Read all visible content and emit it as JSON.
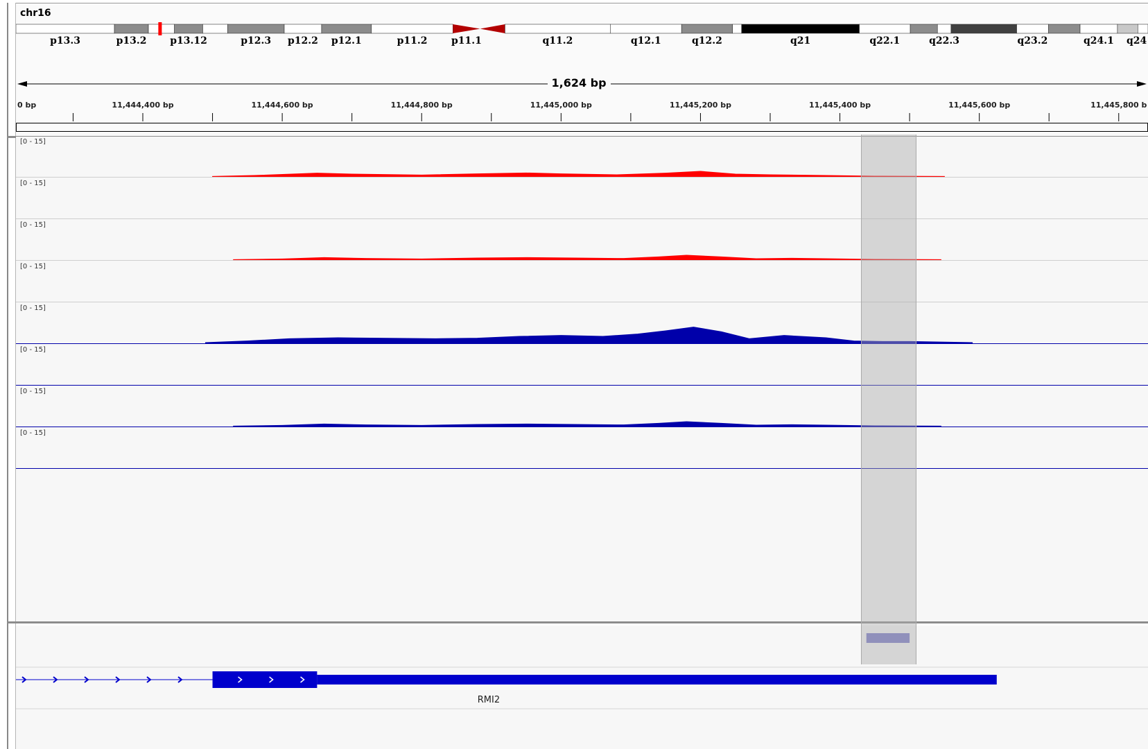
{
  "chromosome": {
    "name": "chr16",
    "bands": [
      {
        "name": "p13.3",
        "stain": "gneg",
        "start": 0,
        "end": 0.087
      },
      {
        "name": "p13.2",
        "stain": "gpos50",
        "start": 0.087,
        "end": 0.117
      },
      {
        "name": "p13.13",
        "stain": "gneg",
        "start": 0.117,
        "end": 0.14
      },
      {
        "name": "p13.12",
        "stain": "gpos50",
        "start": 0.14,
        "end": 0.165
      },
      {
        "name": "p13.11",
        "stain": "gneg",
        "start": 0.165,
        "end": 0.187
      },
      {
        "name": "p12.3",
        "stain": "gpos50",
        "start": 0.187,
        "end": 0.237
      },
      {
        "name": "p12.2",
        "stain": "gneg",
        "start": 0.237,
        "end": 0.27
      },
      {
        "name": "p12.1",
        "stain": "gpos50",
        "start": 0.27,
        "end": 0.314
      },
      {
        "name": "p11.2",
        "stain": "gneg",
        "start": 0.314,
        "end": 0.386
      },
      {
        "name": "p11.1",
        "stain": "acen",
        "start": 0.386,
        "end": 0.41
      },
      {
        "name": "q11.1",
        "stain": "acen",
        "start": 0.41,
        "end": 0.432
      },
      {
        "name": "q11.2",
        "stain": "gneg",
        "start": 0.432,
        "end": 0.525
      },
      {
        "name": "q12.1",
        "stain": "gneg",
        "start": 0.525,
        "end": 0.588
      },
      {
        "name": "q12.2",
        "stain": "gpos50",
        "start": 0.588,
        "end": 0.633
      },
      {
        "name": "q13",
        "stain": "gneg",
        "start": 0.633,
        "end": 0.641
      },
      {
        "name": "q21",
        "stain": "gpos100",
        "start": 0.641,
        "end": 0.745
      },
      {
        "name": "q22.1",
        "stain": "gneg",
        "start": 0.745,
        "end": 0.79
      },
      {
        "name": "q22.2",
        "stain": "gpos50",
        "start": 0.79,
        "end": 0.814
      },
      {
        "name": "q22.3",
        "stain": "gneg",
        "start": 0.814,
        "end": 0.826
      },
      {
        "name": "q23.1",
        "stain": "gpos75",
        "start": 0.826,
        "end": 0.884
      },
      {
        "name": "q23.2",
        "stain": "gneg",
        "start": 0.884,
        "end": 0.912
      },
      {
        "name": "q23.3",
        "stain": "gpos50",
        "start": 0.912,
        "end": 0.94
      },
      {
        "name": "q24.1",
        "stain": "gneg",
        "start": 0.94,
        "end": 0.973
      },
      {
        "name": "q24.2",
        "stain": "gpos25",
        "start": 0.973,
        "end": 0.991
      },
      {
        "name": "q24.3",
        "stain": "gneg",
        "start": 0.991,
        "end": 1.0
      }
    ],
    "band_labels": [
      "p13.3",
      "p13.2",
      "p13.12",
      "p12.3",
      "p12.2",
      "p12.1",
      "p11.2",
      "p11.1",
      "q11.2",
      "q12.1",
      "q12.2",
      "q21",
      "q22.1",
      "q22.3",
      "q23.2",
      "q24.1",
      "q24"
    ],
    "current_view_fraction": 0.127
  },
  "ruler": {
    "span_label": "1,624 bp",
    "start_bp": 11444218,
    "end_bp": 11445842,
    "tick_labels": [
      "0 bp",
      "11,444,400 bp",
      "11,444,600 bp",
      "11,444,800 bp",
      "11,445,000 bp",
      "11,445,200 bp",
      "11,445,400 bp",
      "11,445,600 bp",
      "11,445,800 b"
    ],
    "tick_values": [
      11444218,
      11444400,
      11444600,
      11444800,
      11445000,
      11445200,
      11445400,
      11445600,
      11445800
    ]
  },
  "tracks": [
    {
      "range_label": "[0 - 15]",
      "color": "#ff0000",
      "profile": "a"
    },
    {
      "range_label": "[0 - 15]",
      "color": "#ff0000",
      "profile": "none"
    },
    {
      "range_label": "[0 - 15]",
      "color": "#ff0000",
      "profile": "b"
    },
    {
      "range_label": "[0 - 15]",
      "color": "#ff0000",
      "profile": "none"
    },
    {
      "range_label": "[0 - 15]",
      "color": "#0000aa",
      "profile": "c"
    },
    {
      "range_label": "[0 - 15]",
      "color": "#0000aa",
      "profile": "none"
    },
    {
      "range_label": "[0 - 15]",
      "color": "#0000aa",
      "profile": "b"
    },
    {
      "range_label": "[0 - 15]",
      "color": "#0000aa",
      "profile": "none"
    }
  ],
  "coverage_profiles": {
    "a": {
      "start_bp": 11444500,
      "end_bp": 11445550,
      "points_bp": [
        11444500,
        11444560,
        11444650,
        11444700,
        11444800,
        11444880,
        11444950,
        11445000,
        11445080,
        11445150,
        11445200,
        11445250,
        11445300,
        11445380,
        11445450,
        11445550
      ],
      "values": [
        0.2,
        0.6,
        1.6,
        1.2,
        0.8,
        1.3,
        1.7,
        1.3,
        0.9,
        1.6,
        2.4,
        1.2,
        0.9,
        0.6,
        0.3,
        0.2
      ]
    },
    "b": {
      "start_bp": 11444530,
      "end_bp": 11445545,
      "points_bp": [
        11444530,
        11444600,
        11444660,
        11444720,
        11444800,
        11444880,
        11444950,
        11445020,
        11445090,
        11445140,
        11445180,
        11445230,
        11445280,
        11445330,
        11445380,
        11445450,
        11445545
      ],
      "values": [
        0.2,
        0.5,
        1.1,
        0.7,
        0.5,
        0.9,
        1.1,
        0.9,
        0.7,
        1.4,
        2.1,
        1.4,
        0.6,
        0.8,
        0.6,
        0.3,
        0.2
      ]
    },
    "c": {
      "start_bp": 11444490,
      "end_bp": 11445590,
      "points_bp": [
        11444490,
        11444550,
        11444610,
        11444680,
        11444740,
        11444820,
        11444880,
        11444940,
        11445000,
        11445060,
        11445110,
        11445150,
        11445190,
        11445230,
        11445270,
        11445320,
        11445380,
        11445420,
        11445460,
        11445500,
        11445590
      ],
      "values": [
        0.3,
        1.0,
        2.0,
        2.4,
        2.2,
        2.0,
        2.2,
        3.0,
        3.4,
        3.0,
        4.0,
        5.4,
        7.0,
        5.0,
        2.0,
        3.4,
        2.4,
        1.0,
        0.8,
        0.8,
        0.3
      ]
    }
  },
  "region_of_interest": {
    "start_bp": 11445430,
    "end_bp": 11445508
  },
  "feature": {
    "start_bp": 11445438,
    "end_bp": 11445500,
    "color": "#7a7ac8"
  },
  "gene": {
    "name": "RMI2",
    "intron_start_bp": 11444218,
    "coding_start_bp": 11444500,
    "coding_end_bp": 11444650,
    "utr_end_bp": 11445625,
    "color": "#0000cc"
  }
}
